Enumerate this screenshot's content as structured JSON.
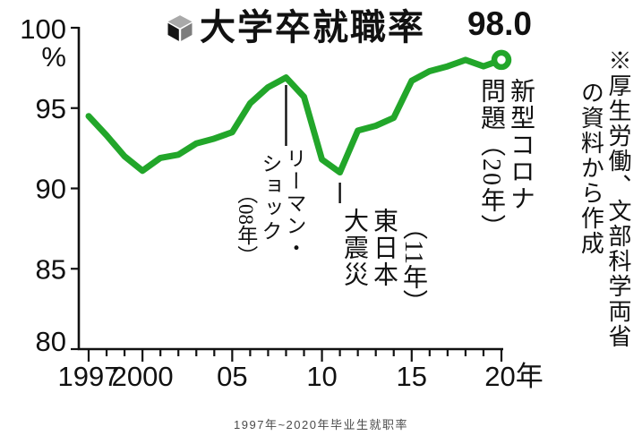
{
  "title": {
    "text": "大学卒就職率",
    "icon": "cube-icon"
  },
  "value_label": "98.0",
  "chart_data": {
    "type": "line",
    "title": "大学卒就職率",
    "x": [
      1997,
      1998,
      1999,
      2000,
      2001,
      2002,
      2003,
      2004,
      2005,
      2006,
      2007,
      2008,
      2009,
      2010,
      2011,
      2012,
      2013,
      2014,
      2015,
      2016,
      2017,
      2018,
      2019,
      2020
    ],
    "values": [
      94.5,
      93.3,
      92.0,
      91.1,
      91.9,
      92.1,
      92.8,
      93.1,
      93.5,
      95.3,
      96.3,
      96.9,
      95.7,
      91.8,
      91.0,
      93.6,
      93.9,
      94.4,
      96.7,
      97.3,
      97.6,
      98.0,
      97.6,
      98.0
    ],
    "ylim": [
      80,
      100
    ],
    "y_ticks": [
      100,
      95,
      90,
      85,
      80
    ],
    "y_tick_labels": [
      "100",
      "95",
      "90",
      "85",
      "80"
    ],
    "y_unit": "%",
    "x_major_ticks": [
      1997,
      2000,
      2005,
      2010,
      2015,
      2020
    ],
    "x_major_labels": [
      "1997",
      "2000",
      "05",
      "10",
      "15",
      "20年"
    ],
    "grid": false,
    "legend": "none",
    "line_color": "#22a62a",
    "axis_color": "#111111",
    "end_marker": {
      "year": 2020,
      "value": 98.0,
      "label": "98.0"
    },
    "annotations": [
      {
        "year": 2008,
        "value": 96.9,
        "text": "リーマン・ショック（08年）"
      },
      {
        "year": 2011,
        "value": 91.0,
        "text": "東日本大震災（11年）"
      },
      {
        "year": 2020,
        "value": 98.0,
        "text": "新型コロナ問題（20年）"
      }
    ]
  },
  "annotations": {
    "lehman": {
      "col1": "リーマン・",
      "col2": "ショック",
      "col3": "（08年）"
    },
    "earthquake": {
      "col1": "（11年）",
      "col2": "東日本",
      "col3": "大震災"
    },
    "covid": {
      "col1": "新型コロナ",
      "col2": "問題（20年）"
    }
  },
  "source_note": {
    "col1": "※厚生労働、文部科学両省",
    "col2": "の資料から作成"
  },
  "caption": "1997年~2020年毕业生就职率",
  "colors": {
    "line_green": "#22a62a",
    "axis_black": "#111111",
    "caption_gray": "#4a4a4a"
  }
}
